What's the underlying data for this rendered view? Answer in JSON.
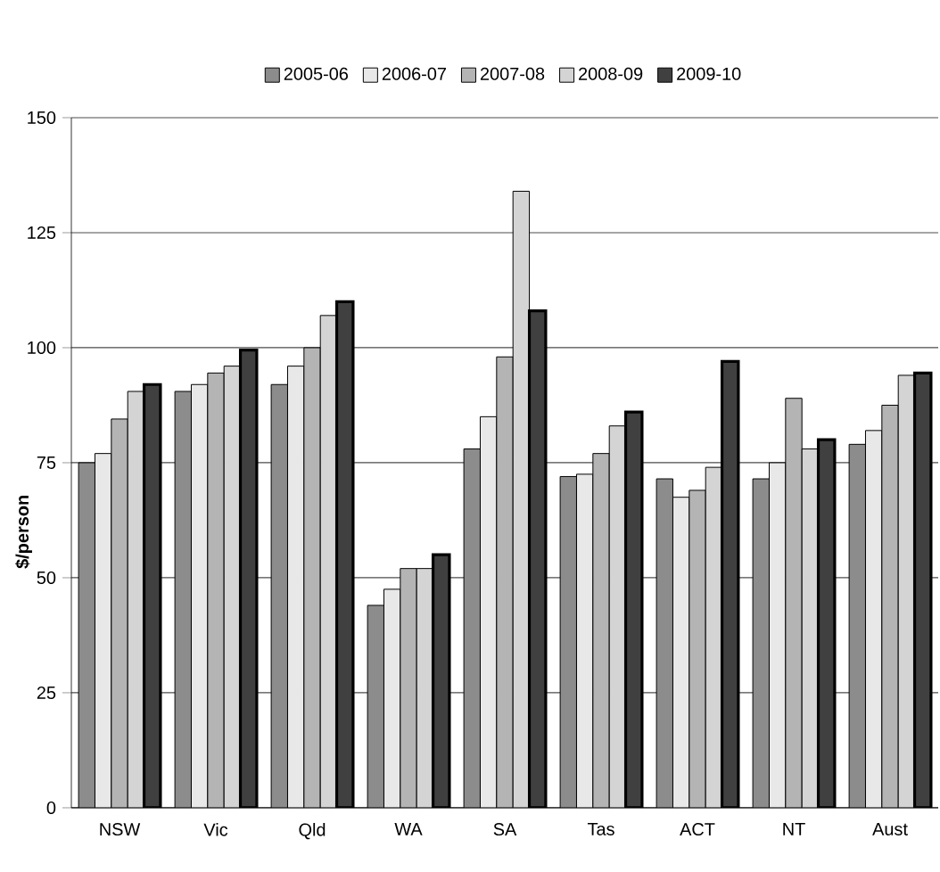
{
  "chart_data": {
    "type": "bar",
    "ylabel": "$/person",
    "categories": [
      "NSW",
      "Vic",
      "Qld",
      "WA",
      "SA",
      "Tas",
      "ACT",
      "NT",
      "Aust"
    ],
    "series": [
      {
        "name": "2005-06",
        "color": "#8c8c8c",
        "values": [
          75,
          90.5,
          92,
          44,
          78,
          72,
          71.5,
          71.5,
          79
        ]
      },
      {
        "name": "2006-07",
        "color": "#e8e8e8",
        "values": [
          77,
          92,
          96,
          47.5,
          85,
          72.5,
          67.5,
          75,
          82
        ]
      },
      {
        "name": "2007-08",
        "color": "#b4b4b4",
        "values": [
          84.5,
          94.5,
          100,
          52,
          98,
          77,
          69,
          89,
          87.5
        ]
      },
      {
        "name": "2008-09",
        "color": "#d4d4d4",
        "values": [
          90.5,
          96,
          107,
          52,
          134,
          83,
          74,
          78,
          94
        ]
      },
      {
        "name": "2009-10",
        "color": "#404040",
        "values": [
          92,
          99.5,
          110,
          55,
          108,
          86,
          97,
          80,
          94.5
        ]
      }
    ],
    "ylim": [
      0,
      150
    ],
    "yticks": [
      0,
      25,
      50,
      75,
      100,
      125,
      150
    ],
    "grid": "y",
    "legend": "top"
  }
}
